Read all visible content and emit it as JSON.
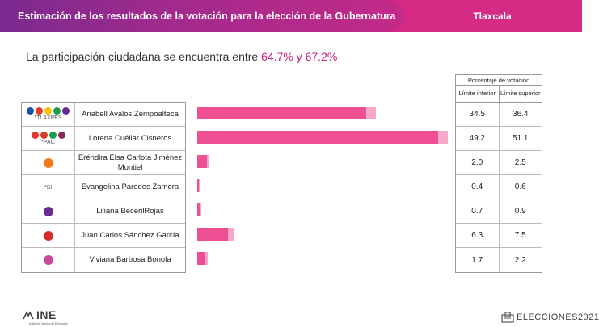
{
  "header": {
    "title": "Estimación de los resultados de la votación para la elección de la Gubernatura",
    "state": "Tlaxcala",
    "colors": {
      "purple": "#7a2a8f",
      "pink": "#d62b84"
    }
  },
  "participation": {
    "text": "La participación ciudadana se encuentra entre ",
    "range": "64.7% y 67.2%"
  },
  "table_header": {
    "title": "Porcentaje de votación",
    "lower": "Límite inferior",
    "upper": "Límite superior"
  },
  "candidates": [
    {
      "name": "Anabell Avalos Zempoalteca",
      "note": "*TLAXPES",
      "logo_colors": [
        "#1f4fa8",
        "#e33a2d",
        "#f2c500",
        "#1c9a4e",
        "#6a2a8f"
      ],
      "lower": "34.5",
      "upper": "36.4",
      "lower_value": 34.5,
      "upper_value": 36.4
    },
    {
      "name": "Lorena Cuéllar Cisneros",
      "note": "*PAC",
      "logo_colors": [
        "#e33a2d",
        "#d63a2d",
        "#1c9a4e",
        "#8a2a5a"
      ],
      "lower": "49.2",
      "upper": "51.1",
      "lower_value": 49.2,
      "upper_value": 51.1
    },
    {
      "name": "Eréndira Elsa Carlota Jiménez Montiel",
      "note": "",
      "logo_colors": [
        "#f07a1c"
      ],
      "lower": "2.0",
      "upper": "2.5",
      "lower_value": 2.0,
      "upper_value": 2.5
    },
    {
      "name": "Evangelina Paredes Zamora",
      "note": "*SI",
      "logo_colors": [],
      "lower": "0.4",
      "upper": "0.6",
      "lower_value": 0.4,
      "upper_value": 0.6
    },
    {
      "name": "Liliana BecerilRojas",
      "note": "",
      "logo_colors": [
        "#6a2a8f"
      ],
      "lower": "0.7",
      "upper": "0.9",
      "lower_value": 0.7,
      "upper_value": 0.9
    },
    {
      "name": "Juan Carlos Sánchez García",
      "note": "",
      "logo_colors": [
        "#d62b2b"
      ],
      "lower": "6.3",
      "upper": "7.5",
      "lower_value": 6.3,
      "upper_value": 7.5
    },
    {
      "name": "Viviana Barbosa Bonola",
      "note": "",
      "logo_colors": [
        "#c84a9a"
      ],
      "lower": "1.7",
      "upper": "2.2",
      "lower_value": 1.7,
      "upper_value": 2.2
    }
  ],
  "bar_colors": {
    "lower": "#ee4f93",
    "upper": "#f7a8c8"
  },
  "footer": {
    "ine": "INE",
    "ine_sub": "Instituto Nacional Electoral",
    "elecciones": "ELECCIONES2021"
  }
}
